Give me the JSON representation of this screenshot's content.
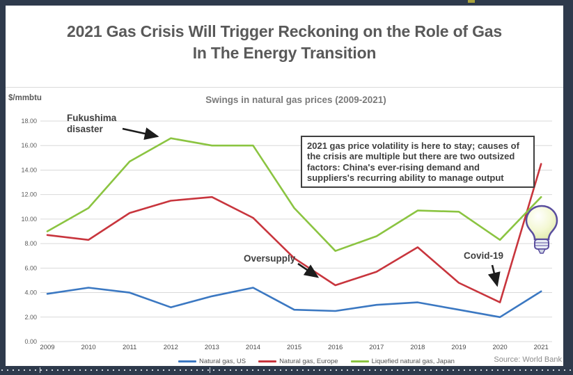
{
  "window": {
    "frame_color": "#2e3a4c",
    "accent_tick_color": "#a9a23b"
  },
  "title": {
    "line1": "2021 Gas Crisis Will Trigger Reckoning on the Role of Gas",
    "line2": "In The Energy Transition"
  },
  "annotations": {
    "fukushima": "Fukushima disaster",
    "oversupply": "Oversupply",
    "covid": "Covid-19",
    "callout": "2021 gas price volatility is here to stay; causes of the crisis are multiple but there are two outsized factors: China's ever-rising demand and suppliers's recurring ability to manage output"
  },
  "footer": {
    "source": "Source: World Bank"
  },
  "chart_data": {
    "type": "line",
    "title": "Swings in natural gas prices (2009-2021)",
    "ylabel": "$/mmbtu",
    "xlabel": "",
    "ylim": [
      0,
      18
    ],
    "ytick_step": 2,
    "grid": true,
    "legend_position": "bottom",
    "categories": [
      "2009",
      "2010",
      "2011",
      "2012",
      "2013",
      "2014",
      "2015",
      "2016",
      "2017",
      "2018",
      "2019",
      "2020",
      "2021"
    ],
    "series": [
      {
        "name": "Natural gas, US",
        "color": "#3b78c2",
        "values": [
          3.9,
          4.4,
          4.0,
          2.8,
          3.7,
          4.4,
          2.6,
          2.5,
          3.0,
          3.2,
          2.6,
          2.0,
          4.1
        ]
      },
      {
        "name": "Natural gas, Europe",
        "color": "#c8353d",
        "values": [
          8.7,
          8.3,
          10.5,
          11.5,
          11.8,
          10.1,
          6.8,
          4.6,
          5.7,
          7.7,
          4.8,
          3.2,
          14.5
        ]
      },
      {
        "name": "Liquefied natural gas, Japan",
        "color": "#8bc441",
        "values": [
          9.0,
          10.9,
          14.7,
          16.6,
          16.0,
          16.0,
          10.9,
          7.4,
          8.6,
          10.7,
          10.6,
          8.3,
          11.8
        ]
      }
    ]
  }
}
